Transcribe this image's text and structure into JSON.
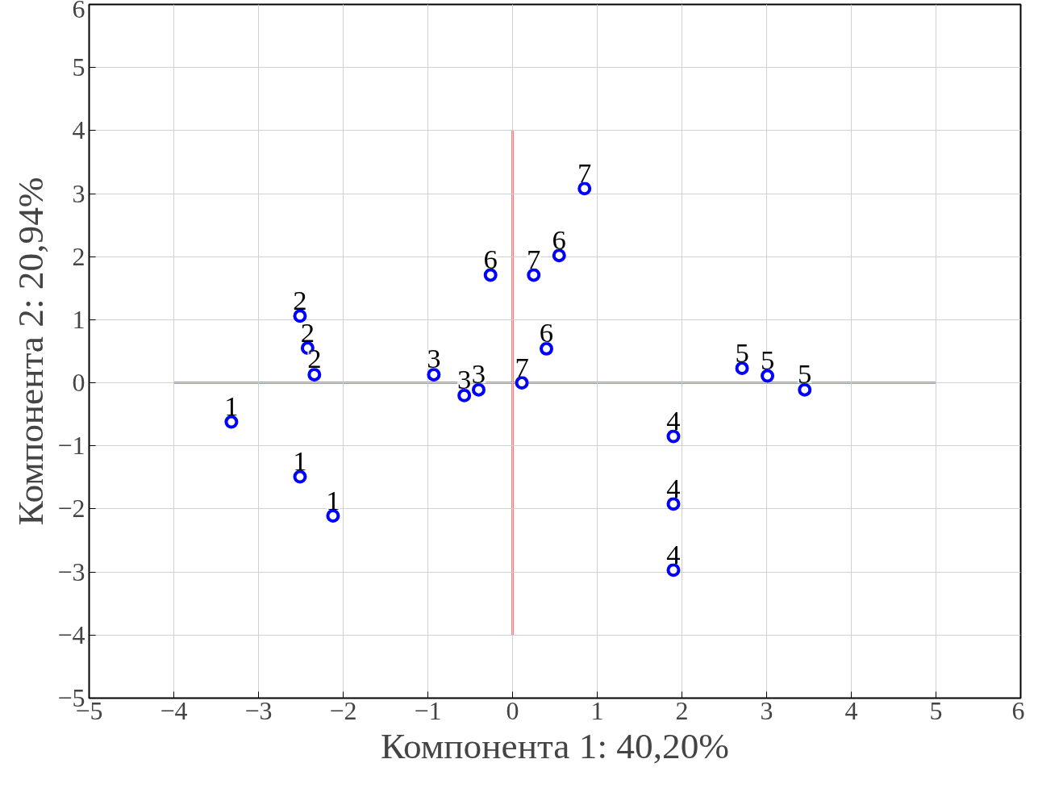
{
  "chart_data": {
    "type": "scatter",
    "xlabel": "Компонента 1: 40,20%",
    "ylabel": "Компонента 2: 20,94%",
    "xlim": [
      -5,
      6
    ],
    "ylim": [
      -5,
      6
    ],
    "xticks": [
      -5,
      -4,
      -3,
      -2,
      -1,
      0,
      1,
      2,
      3,
      4,
      5,
      6
    ],
    "yticks": [
      -5,
      -4,
      -3,
      -2,
      -1,
      0,
      1,
      2,
      3,
      4,
      5,
      6
    ],
    "grid": true,
    "marker": "circle",
    "series": [
      {
        "name": "1",
        "color": "#0000ff",
        "x": [
          -3.32,
          -2.51,
          -2.12
        ],
        "values": [
          -0.62,
          -1.49,
          -2.11
        ]
      },
      {
        "name": "2",
        "color": "#0000ff",
        "x": [
          -2.51,
          -2.42,
          -2.34
        ],
        "values": [
          1.06,
          0.55,
          0.13
        ]
      },
      {
        "name": "3",
        "color": "#0000ff",
        "x": [
          -0.93,
          -0.57,
          -0.4
        ],
        "values": [
          0.13,
          -0.2,
          -0.11
        ]
      },
      {
        "name": "4",
        "color": "#0000ff",
        "x": [
          1.9,
          1.9,
          1.9
        ],
        "values": [
          -0.85,
          -1.92,
          -2.97
        ]
      },
      {
        "name": "5",
        "color": "#0000ff",
        "x": [
          2.71,
          3.01,
          3.45
        ],
        "values": [
          0.23,
          0.11,
          -0.11
        ]
      },
      {
        "name": "6",
        "color": "#0000ff",
        "x": [
          -0.26,
          0.55,
          0.4
        ],
        "values": [
          1.71,
          2.02,
          0.54
        ]
      },
      {
        "name": "7",
        "color": "#0000ff",
        "x": [
          0.25,
          0.85,
          0.11
        ],
        "values": [
          1.71,
          3.08,
          0.0
        ]
      },
      {
        "type": "line",
        "marker": "none",
        "color": "#ff0000",
        "x": [
          -4,
          5
        ],
        "values": [
          0,
          0
        ]
      },
      {
        "type": "line",
        "marker": "none",
        "color": "#ff0000",
        "x": [
          0,
          0
        ],
        "values": [
          -4,
          4
        ]
      }
    ]
  }
}
